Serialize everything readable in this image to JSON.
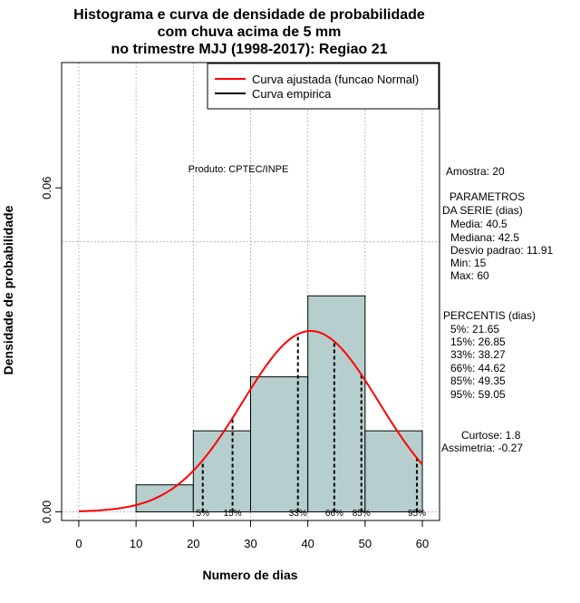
{
  "chart_data": {
    "type": "histogram",
    "title_lines": [
      "Histograma e curva de densidade de probabilidade",
      "com chuva acima de 5 mm",
      "no trimestre MJJ (1998-2017): Regiao 21"
    ],
    "xlabel": "Numero de dias",
    "ylabel": "Densidade de probabilidade",
    "xlim": [
      -3,
      63
    ],
    "ylim": [
      -0.0016,
      0.0832
    ],
    "x_ticks": [
      0,
      10,
      20,
      30,
      40,
      50,
      60
    ],
    "x_tick_labels": [
      "0",
      "10",
      "20",
      "30",
      "40",
      "50",
      "60"
    ],
    "y_ticks": [
      0.0,
      0.06
    ],
    "y_tick_labels": [
      "0.00",
      "0.06"
    ],
    "grid_x": [
      0,
      10,
      20,
      30,
      40,
      50,
      60
    ],
    "grid_y": [
      0,
      0.05
    ],
    "bins": [
      {
        "x0": 10,
        "x1": 20,
        "density": 0.005
      },
      {
        "x0": 20,
        "x1": 30,
        "density": 0.015
      },
      {
        "x0": 30,
        "x1": 40,
        "density": 0.025
      },
      {
        "x0": 40,
        "x1": 50,
        "density": 0.04
      },
      {
        "x0": 50,
        "x1": 60,
        "density": 0.015
      }
    ],
    "normal_fit": {
      "mean": 40.5,
      "sd": 11.91,
      "x_from": 0,
      "x_to": 60
    },
    "percentile_lines": [
      {
        "label": "5%",
        "x": 21.65
      },
      {
        "label": "15%",
        "x": 26.85
      },
      {
        "label": "33%",
        "x": 38.27
      },
      {
        "label": "66%",
        "x": 44.62
      },
      {
        "label": "85%",
        "x": 49.35
      },
      {
        "label": "95%",
        "x": 59.05
      }
    ],
    "legend": {
      "position": "top-right",
      "entries": [
        {
          "label": "Curva ajustada (funcao Normal)",
          "color": "#ff0000"
        },
        {
          "label": "Curva empirica",
          "color": "#000000"
        }
      ]
    },
    "annotation": "Produto: CPTEC/INPE",
    "colors": {
      "bar_fill": "#b7cece",
      "curve": "#ff0000",
      "grid": "#aaaaaa"
    }
  },
  "side_panel": {
    "sample": "Amostra: 20",
    "params_title_1": "PARAMETROS",
    "params_title_2": "DA SERIE (dias)",
    "media": "Media: 40.5",
    "mediana": "Mediana: 42.5",
    "desvio": "Desvio padrao: 11.91",
    "min": "Min: 15",
    "max": "Max: 60",
    "percentis_title": "PERCENTIS (dias)",
    "p5": "5%: 21.65",
    "p15": "15%: 26.85",
    "p33": "33%: 38.27",
    "p66": "66%: 44.62",
    "p85": "85%: 49.35",
    "p95": "95%: 59.05",
    "curtose": "Curtose: 1.8",
    "assimetria": "Assimetria: -0.27"
  }
}
